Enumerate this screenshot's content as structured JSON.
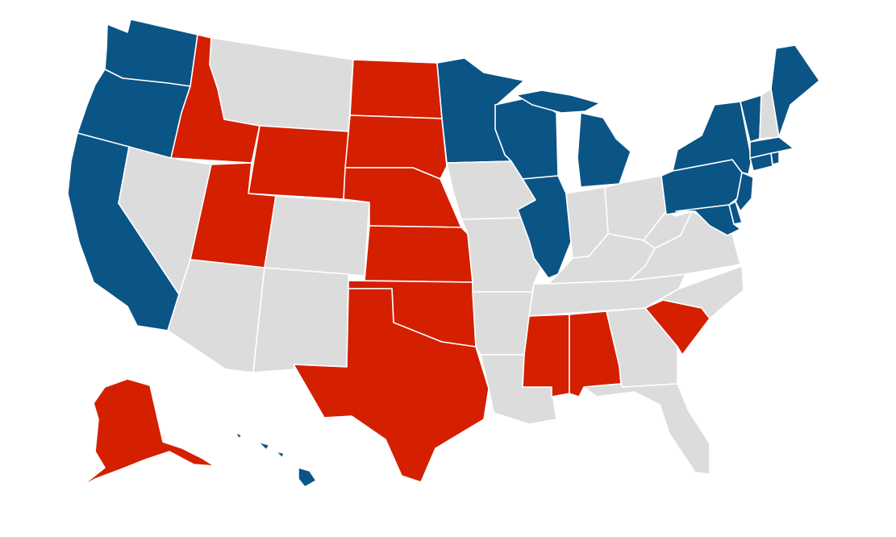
{
  "map": {
    "colors": {
      "blue": "#0b5486",
      "red": "#d41f00",
      "gray": "#dcdcdc",
      "border": "#ffffff"
    },
    "states": [
      {
        "id": "WA",
        "status": "blue"
      },
      {
        "id": "OR",
        "status": "blue"
      },
      {
        "id": "CA",
        "status": "blue"
      },
      {
        "id": "ID",
        "status": "red"
      },
      {
        "id": "NV",
        "status": "gray"
      },
      {
        "id": "MT",
        "status": "gray"
      },
      {
        "id": "WY",
        "status": "red"
      },
      {
        "id": "UT",
        "status": "red"
      },
      {
        "id": "AZ",
        "status": "gray"
      },
      {
        "id": "CO",
        "status": "gray"
      },
      {
        "id": "NM",
        "status": "gray"
      },
      {
        "id": "ND",
        "status": "red"
      },
      {
        "id": "SD",
        "status": "red"
      },
      {
        "id": "NE",
        "status": "red"
      },
      {
        "id": "KS",
        "status": "red"
      },
      {
        "id": "OK",
        "status": "red"
      },
      {
        "id": "TX",
        "status": "red"
      },
      {
        "id": "MN",
        "status": "blue"
      },
      {
        "id": "IA",
        "status": "gray"
      },
      {
        "id": "MO",
        "status": "gray"
      },
      {
        "id": "AR",
        "status": "gray"
      },
      {
        "id": "LA",
        "status": "gray"
      },
      {
        "id": "WI",
        "status": "blue"
      },
      {
        "id": "IL",
        "status": "blue"
      },
      {
        "id": "MI",
        "status": "blue"
      },
      {
        "id": "IN",
        "status": "gray"
      },
      {
        "id": "OH",
        "status": "gray"
      },
      {
        "id": "KY",
        "status": "gray"
      },
      {
        "id": "TN",
        "status": "gray"
      },
      {
        "id": "MS",
        "status": "red"
      },
      {
        "id": "AL",
        "status": "red"
      },
      {
        "id": "GA",
        "status": "gray"
      },
      {
        "id": "FL",
        "status": "gray"
      },
      {
        "id": "SC",
        "status": "red"
      },
      {
        "id": "NC",
        "status": "gray"
      },
      {
        "id": "VA",
        "status": "gray"
      },
      {
        "id": "WV",
        "status": "gray"
      },
      {
        "id": "PA",
        "status": "blue"
      },
      {
        "id": "NY",
        "status": "blue"
      },
      {
        "id": "NJ",
        "status": "blue"
      },
      {
        "id": "DE",
        "status": "blue"
      },
      {
        "id": "MD",
        "status": "blue"
      },
      {
        "id": "CT",
        "status": "blue"
      },
      {
        "id": "RI",
        "status": "blue"
      },
      {
        "id": "MA",
        "status": "blue"
      },
      {
        "id": "VT",
        "status": "blue"
      },
      {
        "id": "NH",
        "status": "gray"
      },
      {
        "id": "ME",
        "status": "blue"
      },
      {
        "id": "AK",
        "status": "red"
      },
      {
        "id": "HI",
        "status": "blue"
      }
    ]
  }
}
